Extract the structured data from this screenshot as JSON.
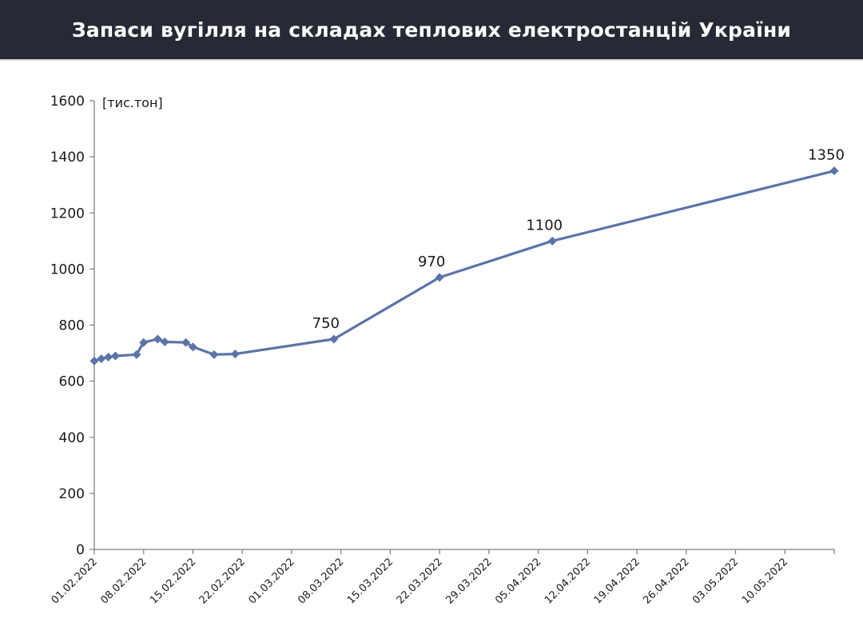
{
  "header": {
    "title": "Запаси вугілля на складах теплових електростанцій України"
  },
  "colors": {
    "header_bg": "#272a35",
    "series": "#5b74a8",
    "axis": "#7f7f7f"
  },
  "chart_data": {
    "type": "line",
    "title": "Запаси вугілля на складах теплових електростанцій України",
    "ylabel": "[тис.тон]",
    "xlabel": "",
    "ylim": [
      0,
      1600
    ],
    "yticks": [
      0,
      200,
      400,
      600,
      800,
      1000,
      1200,
      1400,
      1600
    ],
    "xlim": [
      "2022-02-01",
      "2022-05-17"
    ],
    "xtick_labels": [
      "01.02.2022",
      "08.02.2022",
      "15.02.2022",
      "22.02.2022",
      "01.03.2022",
      "08.03.2022",
      "15.03.2022",
      "22.03.2022",
      "29.03.2022",
      "05.04.2022",
      "12.04.2022",
      "19.04.2022",
      "26.04.2022",
      "03.05.2022",
      "10.05.2022"
    ],
    "grid": false,
    "legend": "none",
    "series": [
      {
        "points": [
          {
            "x": "2022-02-01",
            "y": 672
          },
          {
            "x": "2022-02-02",
            "y": 680
          },
          {
            "x": "2022-02-03",
            "y": 686
          },
          {
            "x": "2022-02-04",
            "y": 690
          },
          {
            "x": "2022-02-07",
            "y": 695
          },
          {
            "x": "2022-02-08",
            "y": 738
          },
          {
            "x": "2022-02-10",
            "y": 750
          },
          {
            "x": "2022-02-11",
            "y": 740
          },
          {
            "x": "2022-02-14",
            "y": 738
          },
          {
            "x": "2022-02-15",
            "y": 722
          },
          {
            "x": "2022-02-18",
            "y": 695
          },
          {
            "x": "2022-02-21",
            "y": 697
          },
          {
            "x": "2022-03-07",
            "y": 750
          },
          {
            "x": "2022-03-22",
            "y": 970
          },
          {
            "x": "2022-04-07",
            "y": 1100
          },
          {
            "x": "2022-05-17",
            "y": 1350
          }
        ]
      }
    ],
    "annotations": [
      {
        "x": "2022-03-07",
        "y": 750,
        "text": "750"
      },
      {
        "x": "2022-03-22",
        "y": 970,
        "text": "970"
      },
      {
        "x": "2022-04-07",
        "y": 1100,
        "text": "1100"
      },
      {
        "x": "2022-05-17",
        "y": 1350,
        "text": "1350"
      }
    ]
  }
}
